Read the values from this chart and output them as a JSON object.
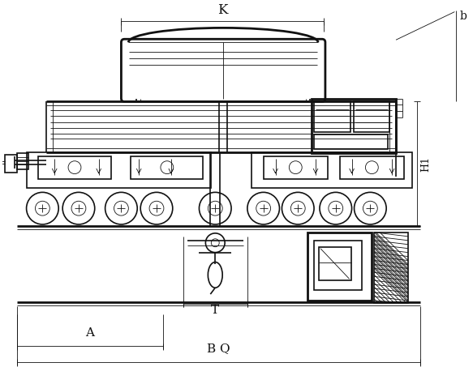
{
  "fig_width": 5.83,
  "fig_height": 4.74,
  "dpi": 100,
  "bg_color": "#ffffff",
  "line_color": "#111111",
  "lw_thick": 2.0,
  "lw_medium": 1.2,
  "lw_thin": 0.6,
  "label_K": "K",
  "label_BQ": "B Q",
  "label_A": "A",
  "label_T": "T",
  "label_H1": "H1",
  "label_b": "b"
}
